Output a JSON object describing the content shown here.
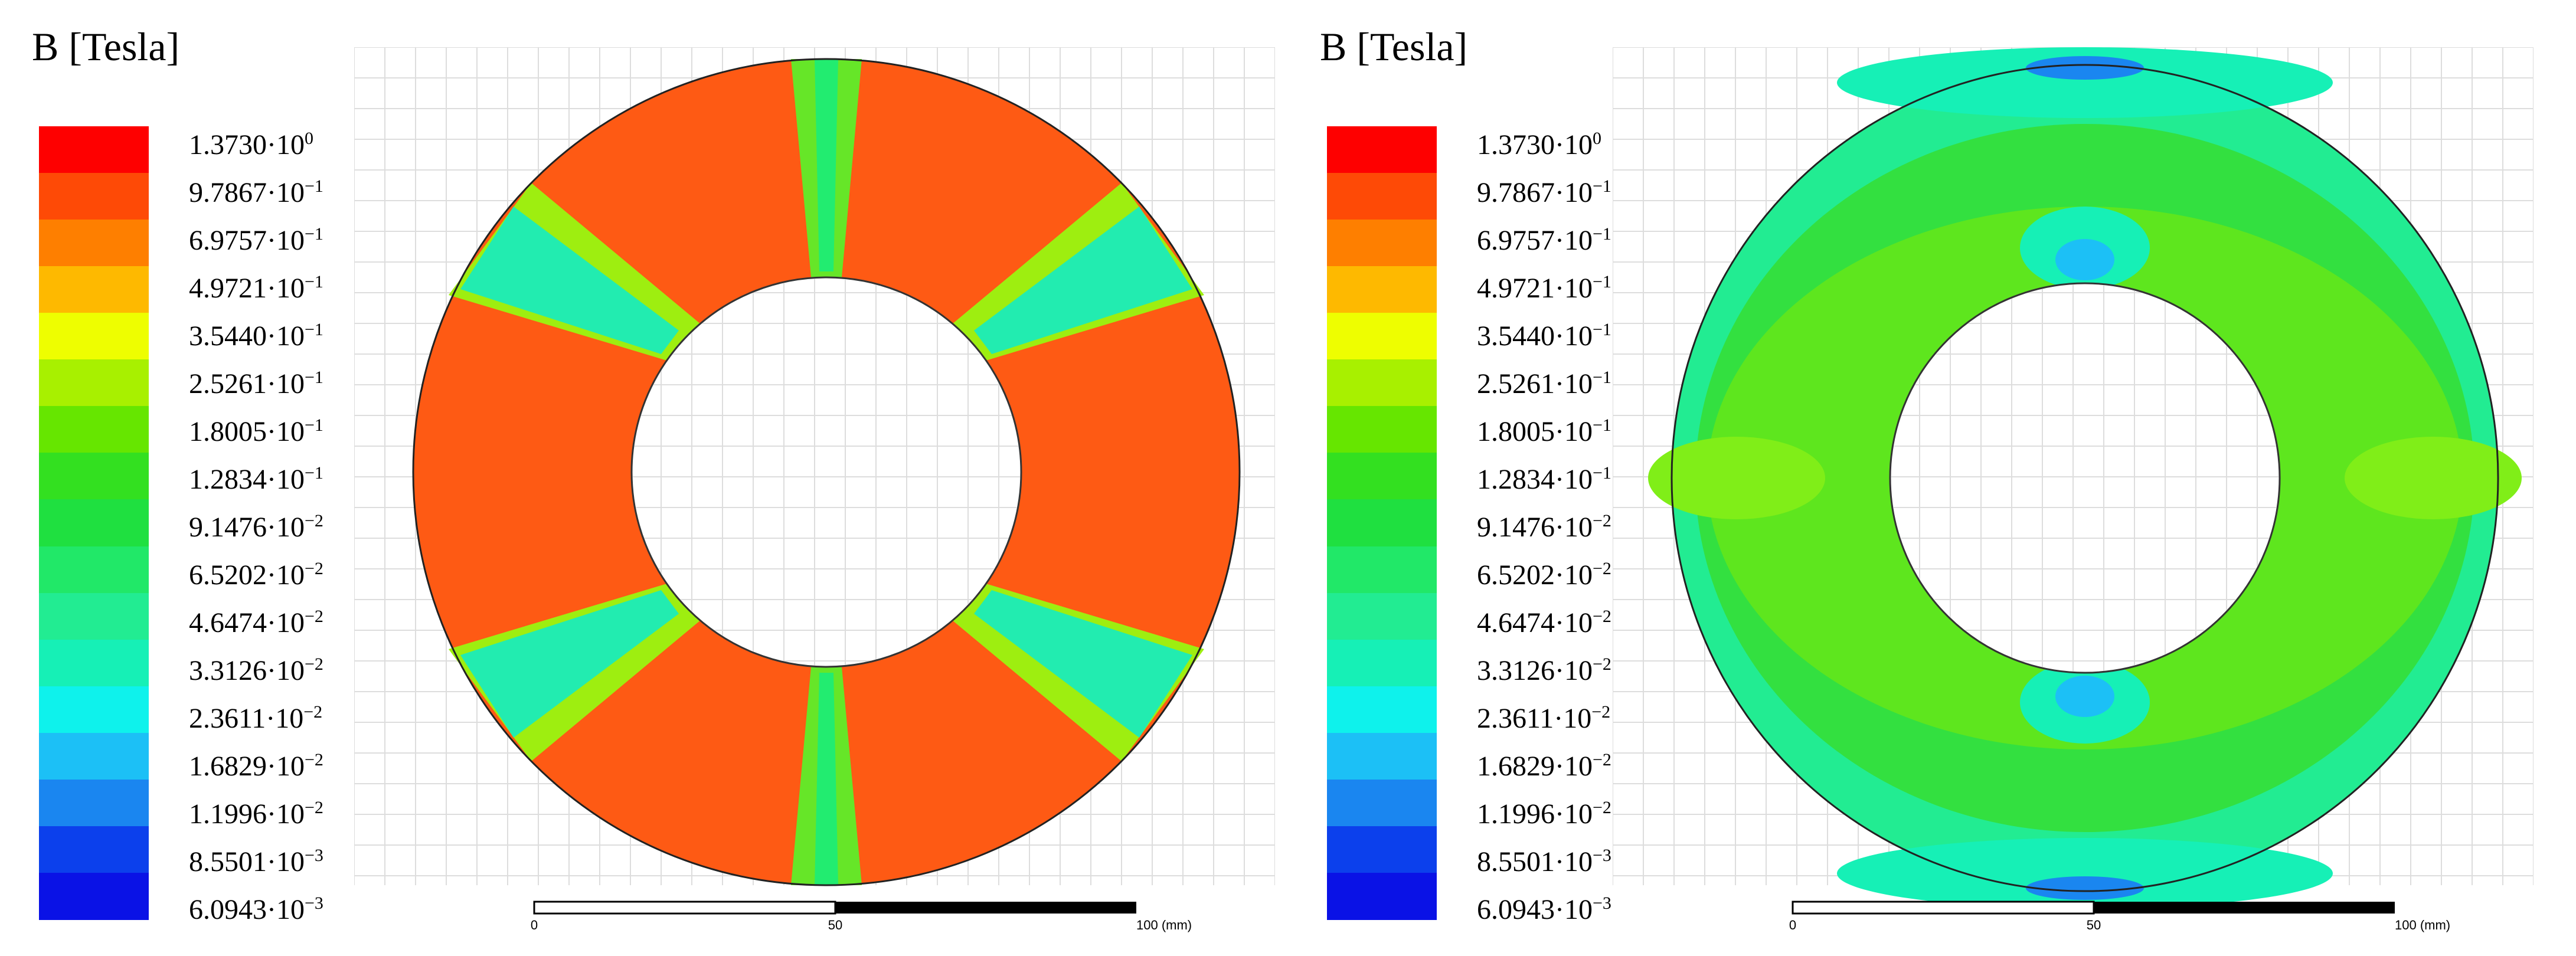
{
  "legend": {
    "title": "B [Tesla]",
    "ticks": [
      {
        "mantissa": "1.3730",
        "exp": "0"
      },
      {
        "mantissa": "9.7867",
        "exp": "−1"
      },
      {
        "mantissa": "6.9757",
        "exp": "−1"
      },
      {
        "mantissa": "4.9721",
        "exp": "−1"
      },
      {
        "mantissa": "3.5440",
        "exp": "−1"
      },
      {
        "mantissa": "2.5261",
        "exp": "−1"
      },
      {
        "mantissa": "1.8005",
        "exp": "−1"
      },
      {
        "mantissa": "1.2834",
        "exp": "−1"
      },
      {
        "mantissa": "9.1476",
        "exp": "−2"
      },
      {
        "mantissa": "6.5202",
        "exp": "−2"
      },
      {
        "mantissa": "4.6474",
        "exp": "−2"
      },
      {
        "mantissa": "3.3126",
        "exp": "−2"
      },
      {
        "mantissa": "2.3611",
        "exp": "−2"
      },
      {
        "mantissa": "1.6829",
        "exp": "−2"
      },
      {
        "mantissa": "1.1996",
        "exp": "−2"
      },
      {
        "mantissa": "8.5501",
        "exp": "−3"
      },
      {
        "mantissa": "6.0943",
        "exp": "−3"
      }
    ],
    "colors": [
      "#fe0000",
      "#fe4a06",
      "#fe7f00",
      "#feb900",
      "#eefe00",
      "#a8f000",
      "#66e600",
      "#33e020",
      "#1fe040",
      "#21e868",
      "#22ec92",
      "#16f0b6",
      "#0ef2ec",
      "#1cc0f6",
      "#1a86f0",
      "#0c40ec",
      "#0a12e6"
    ]
  },
  "scalebar": {
    "label_0": "0",
    "label_50": "50",
    "label_100": "100 (mm)"
  },
  "colors": {
    "rotor_high": "#fe5a14",
    "slot_green": "#6ae628",
    "gap_cyan": "#22ecb0",
    "grid": "#dddddd"
  }
}
